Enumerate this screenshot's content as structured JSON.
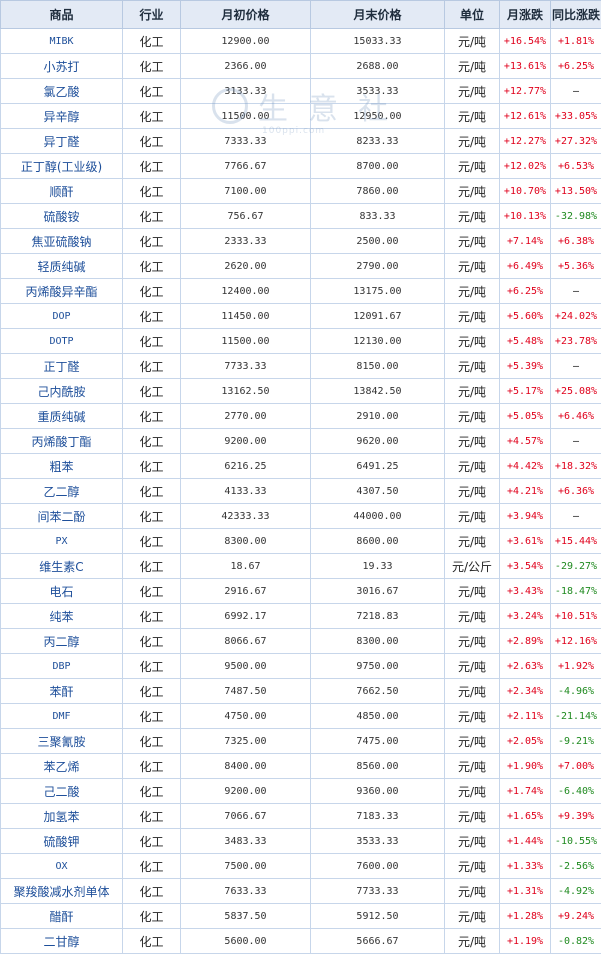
{
  "headers": {
    "product": "商品",
    "industry": "行业",
    "start_price": "月初价格",
    "end_price": "月末价格",
    "unit": "单位",
    "monthly_change": "月涨跌",
    "yoy_change": "同比涨跌"
  },
  "watermark": {
    "text": "生意社",
    "url": "100ppi.com"
  },
  "colors": {
    "up": "#e0001b",
    "down": "#1f8a1f",
    "header_bg": "#e3eaf5",
    "border": "#c7d6ea",
    "name_link": "#1e4f9a"
  },
  "rows": [
    {
      "name": "MIBK",
      "industry": "化工",
      "start": "12900.00",
      "end": "15033.33",
      "unit": "元/吨",
      "mom": "+16.54%",
      "yoy": "+1.81%"
    },
    {
      "name": "小苏打",
      "industry": "化工",
      "start": "2366.00",
      "end": "2688.00",
      "unit": "元/吨",
      "mom": "+13.61%",
      "yoy": "+6.25%"
    },
    {
      "name": "氯乙酸",
      "industry": "化工",
      "start": "3133.33",
      "end": "3533.33",
      "unit": "元/吨",
      "mom": "+12.77%",
      "yoy": "—"
    },
    {
      "name": "异辛醇",
      "industry": "化工",
      "start": "11500.00",
      "end": "12950.00",
      "unit": "元/吨",
      "mom": "+12.61%",
      "yoy": "+33.05%"
    },
    {
      "name": "异丁醛",
      "industry": "化工",
      "start": "7333.33",
      "end": "8233.33",
      "unit": "元/吨",
      "mom": "+12.27%",
      "yoy": "+27.32%"
    },
    {
      "name": "正丁醇(工业级)",
      "industry": "化工",
      "start": "7766.67",
      "end": "8700.00",
      "unit": "元/吨",
      "mom": "+12.02%",
      "yoy": "+6.53%"
    },
    {
      "name": "顺酐",
      "industry": "化工",
      "start": "7100.00",
      "end": "7860.00",
      "unit": "元/吨",
      "mom": "+10.70%",
      "yoy": "+13.50%"
    },
    {
      "name": "硫酸铵",
      "industry": "化工",
      "start": "756.67",
      "end": "833.33",
      "unit": "元/吨",
      "mom": "+10.13%",
      "yoy": "-32.98%"
    },
    {
      "name": "焦亚硫酸钠",
      "industry": "化工",
      "start": "2333.33",
      "end": "2500.00",
      "unit": "元/吨",
      "mom": "+7.14%",
      "yoy": "+6.38%"
    },
    {
      "name": "轻质纯碱",
      "industry": "化工",
      "start": "2620.00",
      "end": "2790.00",
      "unit": "元/吨",
      "mom": "+6.49%",
      "yoy": "+5.36%"
    },
    {
      "name": "丙烯酸异辛酯",
      "industry": "化工",
      "start": "12400.00",
      "end": "13175.00",
      "unit": "元/吨",
      "mom": "+6.25%",
      "yoy": "—"
    },
    {
      "name": "DOP",
      "industry": "化工",
      "start": "11450.00",
      "end": "12091.67",
      "unit": "元/吨",
      "mom": "+5.60%",
      "yoy": "+24.02%"
    },
    {
      "name": "DOTP",
      "industry": "化工",
      "start": "11500.00",
      "end": "12130.00",
      "unit": "元/吨",
      "mom": "+5.48%",
      "yoy": "+23.78%"
    },
    {
      "name": "正丁醛",
      "industry": "化工",
      "start": "7733.33",
      "end": "8150.00",
      "unit": "元/吨",
      "mom": "+5.39%",
      "yoy": "—"
    },
    {
      "name": "己内酰胺",
      "industry": "化工",
      "start": "13162.50",
      "end": "13842.50",
      "unit": "元/吨",
      "mom": "+5.17%",
      "yoy": "+25.08%"
    },
    {
      "name": "重质纯碱",
      "industry": "化工",
      "start": "2770.00",
      "end": "2910.00",
      "unit": "元/吨",
      "mom": "+5.05%",
      "yoy": "+6.46%"
    },
    {
      "name": "丙烯酸丁酯",
      "industry": "化工",
      "start": "9200.00",
      "end": "9620.00",
      "unit": "元/吨",
      "mom": "+4.57%",
      "yoy": "—"
    },
    {
      "name": "粗苯",
      "industry": "化工",
      "start": "6216.25",
      "end": "6491.25",
      "unit": "元/吨",
      "mom": "+4.42%",
      "yoy": "+18.32%"
    },
    {
      "name": "乙二醇",
      "industry": "化工",
      "start": "4133.33",
      "end": "4307.50",
      "unit": "元/吨",
      "mom": "+4.21%",
      "yoy": "+6.36%"
    },
    {
      "name": "间苯二酚",
      "industry": "化工",
      "start": "42333.33",
      "end": "44000.00",
      "unit": "元/吨",
      "mom": "+3.94%",
      "yoy": "—"
    },
    {
      "name": "PX",
      "industry": "化工",
      "start": "8300.00",
      "end": "8600.00",
      "unit": "元/吨",
      "mom": "+3.61%",
      "yoy": "+15.44%"
    },
    {
      "name": "维生素C",
      "industry": "化工",
      "start": "18.67",
      "end": "19.33",
      "unit": "元/公斤",
      "mom": "+3.54%",
      "yoy": "-29.27%"
    },
    {
      "name": "电石",
      "industry": "化工",
      "start": "2916.67",
      "end": "3016.67",
      "unit": "元/吨",
      "mom": "+3.43%",
      "yoy": "-18.47%"
    },
    {
      "name": "纯苯",
      "industry": "化工",
      "start": "6992.17",
      "end": "7218.83",
      "unit": "元/吨",
      "mom": "+3.24%",
      "yoy": "+10.51%"
    },
    {
      "name": "丙二醇",
      "industry": "化工",
      "start": "8066.67",
      "end": "8300.00",
      "unit": "元/吨",
      "mom": "+2.89%",
      "yoy": "+12.16%"
    },
    {
      "name": "DBP",
      "industry": "化工",
      "start": "9500.00",
      "end": "9750.00",
      "unit": "元/吨",
      "mom": "+2.63%",
      "yoy": "+1.92%"
    },
    {
      "name": "苯酐",
      "industry": "化工",
      "start": "7487.50",
      "end": "7662.50",
      "unit": "元/吨",
      "mom": "+2.34%",
      "yoy": "-4.96%"
    },
    {
      "name": "DMF",
      "industry": "化工",
      "start": "4750.00",
      "end": "4850.00",
      "unit": "元/吨",
      "mom": "+2.11%",
      "yoy": "-21.14%"
    },
    {
      "name": "三聚氰胺",
      "industry": "化工",
      "start": "7325.00",
      "end": "7475.00",
      "unit": "元/吨",
      "mom": "+2.05%",
      "yoy": "-9.21%"
    },
    {
      "name": "苯乙烯",
      "industry": "化工",
      "start": "8400.00",
      "end": "8560.00",
      "unit": "元/吨",
      "mom": "+1.90%",
      "yoy": "+7.00%"
    },
    {
      "name": "己二酸",
      "industry": "化工",
      "start": "9200.00",
      "end": "9360.00",
      "unit": "元/吨",
      "mom": "+1.74%",
      "yoy": "-6.40%"
    },
    {
      "name": "加氢苯",
      "industry": "化工",
      "start": "7066.67",
      "end": "7183.33",
      "unit": "元/吨",
      "mom": "+1.65%",
      "yoy": "+9.39%"
    },
    {
      "name": "硫酸钾",
      "industry": "化工",
      "start": "3483.33",
      "end": "3533.33",
      "unit": "元/吨",
      "mom": "+1.44%",
      "yoy": "-10.55%"
    },
    {
      "name": "OX",
      "industry": "化工",
      "start": "7500.00",
      "end": "7600.00",
      "unit": "元/吨",
      "mom": "+1.33%",
      "yoy": "-2.56%"
    },
    {
      "name": "聚羧酸减水剂单体",
      "industry": "化工",
      "start": "7633.33",
      "end": "7733.33",
      "unit": "元/吨",
      "mom": "+1.31%",
      "yoy": "-4.92%"
    },
    {
      "name": "醋酐",
      "industry": "化工",
      "start": "5837.50",
      "end": "5912.50",
      "unit": "元/吨",
      "mom": "+1.28%",
      "yoy": "+9.24%"
    },
    {
      "name": "二甘醇",
      "industry": "化工",
      "start": "5600.00",
      "end": "5666.67",
      "unit": "元/吨",
      "mom": "+1.19%",
      "yoy": "-0.82%"
    }
  ]
}
